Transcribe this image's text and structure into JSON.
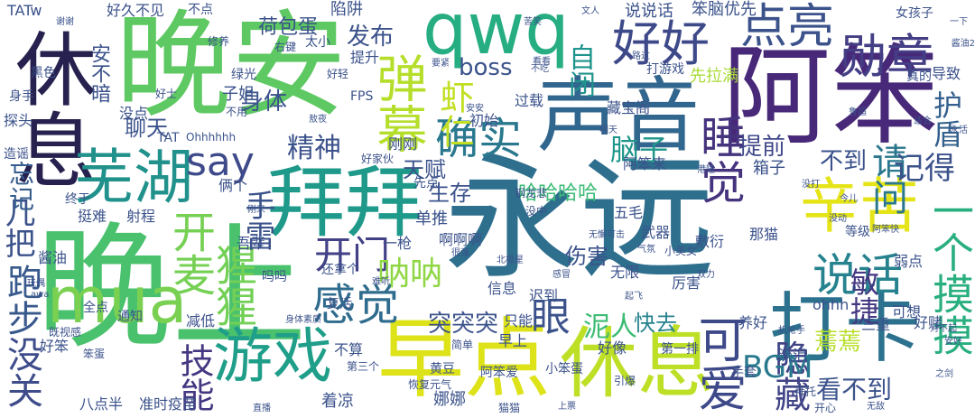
{
  "words": [
    {
      "text": "晚安",
      "color": "#5ec962",
      "vertical": false
    },
    {
      "text": "晚上",
      "color": "#4ac16d",
      "vertical": false
    },
    {
      "text": "永远",
      "color": "#2e6f8e",
      "vertical": false
    },
    {
      "text": "阿笨",
      "color": "#482878",
      "vertical": false
    },
    {
      "text": "休息",
      "color": "#26214e",
      "vertical": true
    },
    {
      "text": "qwq",
      "color": "#26ad81",
      "vertical": false
    },
    {
      "text": "声音",
      "color": "#31668e",
      "vertical": false
    },
    {
      "text": "拜拜",
      "color": "#1f998a",
      "vertical": false
    },
    {
      "text": "早点",
      "color": "#dde318",
      "vertical": false
    },
    {
      "text": "休息",
      "color": "#bddf26",
      "vertical": false
    },
    {
      "text": "打卡",
      "color": "#2c728e",
      "vertical": false
    },
    {
      "text": "芜湖",
      "color": "#21918c",
      "vertical": false
    },
    {
      "text": "mua",
      "color": "#7ad151",
      "vertical": false
    },
    {
      "text": "游戏",
      "color": "#1f9e89",
      "vertical": false
    },
    {
      "text": "弹幕",
      "color": "#b5de2b",
      "vertical": true
    },
    {
      "text": "好好",
      "color": "#3e4989",
      "vertical": false
    },
    {
      "text": "点亮",
      "color": "#3b528b",
      "vertical": false
    },
    {
      "text": "勋章",
      "color": "#433e85",
      "vertical": false
    },
    {
      "text": "辛苦",
      "color": "#e5e419",
      "vertical": false
    },
    {
      "text": "say",
      "color": "#3e4a89",
      "vertical": false
    },
    {
      "text": "精神",
      "color": "#3b528b",
      "vertical": false
    },
    {
      "text": "确实",
      "color": "#2a788e",
      "vertical": false
    },
    {
      "text": "虾仁",
      "color": "#c2df23",
      "vertical": true
    },
    {
      "text": "睡觉",
      "color": "#46337e",
      "vertical": true
    },
    {
      "text": "开麦",
      "color": "#75d054",
      "vertical": true
    },
    {
      "text": "猩猩",
      "color": "#73d056",
      "vertical": true
    },
    {
      "text": "手雷",
      "color": "#3b528b",
      "vertical": true
    },
    {
      "text": "说话",
      "color": "#26828e",
      "vertical": false
    },
    {
      "text": "一个摸摸",
      "color": "#29af7f",
      "vertical": true
    },
    {
      "text": "可爱",
      "color": "#3e4989",
      "vertical": true
    },
    {
      "text": "隐藏",
      "color": "#414487",
      "vertical": true
    },
    {
      "text": "感觉",
      "color": "#2f6c8e",
      "vertical": false
    },
    {
      "text": "BGM",
      "color": "#29798e",
      "vertical": false
    },
    {
      "text": "技能",
      "color": "#453781",
      "vertical": true
    },
    {
      "text": "没关",
      "color": "#3e4c8a",
      "vertical": true
    },
    {
      "text": "跑步",
      "color": "#38598c",
      "vertical": true
    },
    {
      "text": "几把",
      "color": "#3b528b",
      "vertical": true
    },
    {
      "text": "忘记",
      "color": "#365d8d",
      "vertical": true
    },
    {
      "text": "开门",
      "color": "#424086",
      "vertical": false
    },
    {
      "text": "呐呐",
      "color": "#8fd744",
      "vertical": false
    },
    {
      "text": "眼",
      "color": "#3b528b",
      "vertical": false
    },
    {
      "text": "敏捷",
      "color": "#453882",
      "vertical": true
    },
    {
      "text": "请问",
      "color": "#2a778e",
      "vertical": true
    },
    {
      "text": "记得",
      "color": "#3b528b",
      "vertical": false
    },
    {
      "text": "护盾",
      "color": "#34608d",
      "vertical": true
    },
    {
      "text": "boss",
      "color": "#3a538b",
      "vertical": false
    },
    {
      "text": "发布",
      "color": "#3b528b",
      "vertical": false
    },
    {
      "text": "自闭",
      "color": "#1f948c",
      "vertical": true
    },
    {
      "text": "脑子",
      "color": "#1f968b",
      "vertical": false
    },
    {
      "text": "天赋",
      "color": "#3b528b",
      "vertical": false
    },
    {
      "text": "生存",
      "color": "#3b528b",
      "vertical": false
    },
    {
      "text": "提前",
      "color": "#3f4889",
      "vertical": false
    },
    {
      "text": "不到",
      "color": "#3b528b",
      "vertical": false
    },
    {
      "text": "看不到",
      "color": "#3b528b",
      "vertical": false
    },
    {
      "text": "蔫蔫",
      "color": "#b8de29",
      "vertical": false
    },
    {
      "text": "泥人",
      "color": "#3dbc74",
      "vertical": false
    },
    {
      "text": "快去",
      "color": "#26828e",
      "vertical": false
    },
    {
      "text": "哈哈哈哈",
      "color": "#3bbb75",
      "vertical": false
    },
    {
      "text": "突突突",
      "color": "#3b528b",
      "vertical": false
    },
    {
      "text": "伤害",
      "color": "#3b528b",
      "vertical": false
    },
    {
      "text": "聊天",
      "color": "#3b528b",
      "vertical": false
    },
    {
      "text": "荷包蛋",
      "color": "#3b528b",
      "vertical": false
    },
    {
      "text": "身体",
      "color": "#3b528b",
      "vertical": false
    },
    {
      "text": "安不暗",
      "color": "#3b528b",
      "vertical": true
    },
    {
      "text": "好久不见",
      "color": "#3b528b",
      "vertical": false
    },
    {
      "text": "不点",
      "color": "#3b528b",
      "vertical": false
    },
    {
      "text": "陷阱",
      "color": "#3b528b",
      "vertical": false
    },
    {
      "text": "说说话",
      "color": "#3b528b",
      "vertical": false
    },
    {
      "text": "笨脑优先",
      "color": "#3b528b",
      "vertical": false
    },
    {
      "text": "提升",
      "color": "#3b528b",
      "vertical": false
    },
    {
      "text": "太小",
      "color": "#3b528b",
      "vertical": false
    },
    {
      "text": "先拉满",
      "color": "#a8db34",
      "vertical": false
    },
    {
      "text": "过载",
      "color": "#3b528b",
      "vertical": false
    },
    {
      "text": "藏宝阁",
      "color": "#3b528b",
      "vertical": false
    },
    {
      "text": "初始",
      "color": "#3b528b",
      "vertical": false
    },
    {
      "text": "箱子",
      "color": "#3b528b",
      "vertical": false
    },
    {
      "text": "阿笨来",
      "color": "#3b528b",
      "vertical": false
    },
    {
      "text": "刚刚",
      "color": "#3b528b",
      "vertical": false
    },
    {
      "text": "先点",
      "color": "#3b528b",
      "vertical": false
    },
    {
      "text": "五毛",
      "color": "#3b528b",
      "vertical": false
    },
    {
      "text": "单推",
      "color": "#3b528b",
      "vertical": false
    },
    {
      "text": "啊啊啊",
      "color": "#3b528b",
      "vertical": false
    },
    {
      "text": "吾辈",
      "color": "#3b528b",
      "vertical": false
    },
    {
      "text": "射程",
      "color": "#3b528b",
      "vertical": false
    },
    {
      "text": "挺难",
      "color": "#3b528b",
      "vertical": false
    },
    {
      "text": "终于",
      "color": "#3b528b",
      "vertical": false
    },
    {
      "text": "还拿个",
      "color": "#3b528b",
      "vertical": false
    },
    {
      "text": "信息",
      "color": "#3b528b",
      "vertical": false
    },
    {
      "text": "迟到",
      "color": "#3b528b",
      "vertical": false
    },
    {
      "text": "无限",
      "color": "#3b528b",
      "vertical": false
    },
    {
      "text": "武器",
      "color": "#3b528b",
      "vertical": false
    },
    {
      "text": "那猫",
      "color": "#3b528b",
      "vertical": false
    },
    {
      "text": "敷衍",
      "color": "#3b528b",
      "vertical": false
    },
    {
      "text": "厉害",
      "color": "#3b528b",
      "vertical": false
    },
    {
      "text": "弱点",
      "color": "#3b528b",
      "vertical": false
    },
    {
      "text": "可想",
      "color": "#3b528b",
      "vertical": false
    },
    {
      "text": "ohhh",
      "color": "#3b528b",
      "vertical": false
    },
    {
      "text": "好赌",
      "color": "#3b528b",
      "vertical": false
    },
    {
      "text": "三重",
      "color": "#3b528b",
      "vertical": false
    },
    {
      "text": "只能",
      "color": "#3b528b",
      "vertical": false
    },
    {
      "text": "复活",
      "color": "#3b528b",
      "vertical": false
    },
    {
      "text": "减低",
      "color": "#3b528b",
      "vertical": false
    },
    {
      "text": "通知",
      "color": "#3b528b",
      "vertical": false
    },
    {
      "text": "全点",
      "color": "#3b528b",
      "vertical": false
    },
    {
      "text": "好笨",
      "color": "#3b528b",
      "vertical": false
    },
    {
      "text": "八点半",
      "color": "#3b528b",
      "vertical": false
    },
    {
      "text": "准时疫苗",
      "color": "#3b528b",
      "vertical": false
    },
    {
      "text": "着凉",
      "color": "#3b528b",
      "vertical": false
    },
    {
      "text": "娜娜",
      "color": "#3b528b",
      "vertical": false
    },
    {
      "text": "早上",
      "color": "#3b528b",
      "vertical": false
    },
    {
      "text": "好像",
      "color": "#3b528b",
      "vertical": false
    },
    {
      "text": "流泪",
      "color": "#3b528b",
      "vertical": false
    },
    {
      "text": "手套",
      "color": "#3b528b",
      "vertical": false
    },
    {
      "text": "拜托",
      "color": "#3b528b",
      "vertical": false
    },
    {
      "text": "开心",
      "color": "#3b528b",
      "vertical": false
    },
    {
      "text": "阿笨爱",
      "color": "#3b528b",
      "vertical": false
    },
    {
      "text": "猫猫",
      "color": "#3b528b",
      "vertical": false
    },
    {
      "text": "引爆",
      "color": "#3b528b",
      "vertical": false
    },
    {
      "text": "FPS",
      "color": "#3b528b",
      "vertical": false
    },
    {
      "text": "TAT",
      "color": "#3b528b",
      "vertical": false
    },
    {
      "text": "TATw",
      "color": "#3b528b",
      "vertical": false
    },
    {
      "text": "Ohhhhhh",
      "color": "#3b528b",
      "vertical": false
    },
    {
      "text": "没点",
      "color": "#3b528b",
      "vertical": false
    },
    {
      "text": "探头",
      "color": "#3b528b",
      "vertical": false
    },
    {
      "text": "造谣",
      "color": "#3b528b",
      "vertical": false
    },
    {
      "text": "子姐",
      "color": "#3b528b",
      "vertical": false
    },
    {
      "text": "俩个",
      "color": "#3b528b",
      "vertical": false
    },
    {
      "text": "一枪",
      "color": "#3b528b",
      "vertical": false
    },
    {
      "text": "养好",
      "color": "#3b528b",
      "vertical": false
    },
    {
      "text": "等级",
      "color": "#3b528b",
      "vertical": false
    },
    {
      "text": "导致",
      "color": "#3b528b",
      "vertical": false
    },
    {
      "text": "真的",
      "color": "#3b528b",
      "vertical": false
    },
    {
      "text": "女孩子",
      "color": "#3b528b",
      "vertical": false
    },
    {
      "text": "打游戏",
      "color": "#3b528b",
      "vertical": false
    },
    {
      "text": "绿光",
      "color": "#3b528b",
      "vertical": false
    },
    {
      "text": "修养",
      "color": "#3b528b",
      "vertical": false
    },
    {
      "text": "右键",
      "color": "#3b528b",
      "vertical": false
    },
    {
      "text": "不用",
      "color": "#3b528b",
      "vertical": false
    },
    {
      "text": "敖夜",
      "color": "#3b528b",
      "vertical": false
    },
    {
      "text": "安安",
      "color": "#3b528b",
      "vertical": false
    },
    {
      "text": "要紧",
      "color": "#3b528b",
      "vertical": false
    },
    {
      "text": "好轻",
      "color": "#3b528b",
      "vertical": false
    },
    {
      "text": "好士",
      "color": "#3b528b",
      "vertical": false
    },
    {
      "text": "黑色",
      "color": "#3b528b",
      "vertical": false
    },
    {
      "text": "身手",
      "color": "#3b528b",
      "vertical": false
    },
    {
      "text": "谢谢",
      "color": "#3b528b",
      "vertical": false
    },
    {
      "text": "看看",
      "color": "#3b528b",
      "vertical": false
    },
    {
      "text": "明天",
      "color": "#3b528b",
      "vertical": false
    },
    {
      "text": "适合",
      "color": "#3b528b",
      "vertical": false
    },
    {
      "text": "永活",
      "color": "#3b528b",
      "vertical": false
    },
    {
      "text": "苦笑",
      "color": "#3b528b",
      "vertical": false
    },
    {
      "text": "港隆",
      "color": "#3b528b",
      "vertical": false
    },
    {
      "text": "今儿",
      "color": "#3b528b",
      "vertical": false
    },
    {
      "text": "没打",
      "color": "#3b528b",
      "vertical": false
    },
    {
      "text": "没动",
      "color": "#3b528b",
      "vertical": false
    },
    {
      "text": "阿笨快",
      "color": "#3b528b",
      "vertical": false
    },
    {
      "text": "机枪手",
      "color": "#3b528b",
      "vertical": false
    },
    {
      "text": "对不起",
      "color": "#3b528b",
      "vertical": false
    },
    {
      "text": "安好",
      "color": "#3b528b",
      "vertical": false
    },
    {
      "text": "之剑",
      "color": "#3b528b",
      "vertical": false
    },
    {
      "text": "无敌",
      "color": "#3b528b",
      "vertical": false
    },
    {
      "text": "上票",
      "color": "#3b528b",
      "vertical": false
    },
    {
      "text": "直播",
      "color": "#3b528b",
      "vertical": false
    },
    {
      "text": "第三个",
      "color": "#3b528b",
      "vertical": false
    },
    {
      "text": "第一排",
      "color": "#3b528b",
      "vertical": false
    },
    {
      "text": "简单",
      "color": "#3b528b",
      "vertical": false
    },
    {
      "text": "黄豆",
      "color": "#3b528b",
      "vertical": false
    },
    {
      "text": "小笨蛋",
      "color": "#3b528b",
      "vertical": false
    },
    {
      "text": "恢复元气",
      "color": "#3b528b",
      "vertical": false
    },
    {
      "text": "不算",
      "color": "#3b528b",
      "vertical": false
    },
    {
      "text": "酱油",
      "color": "#3b528b",
      "vertical": false
    },
    {
      "text": "笨蛋",
      "color": "#3b528b",
      "vertical": false
    },
    {
      "text": "既视感",
      "color": "#3b528b",
      "vertical": false
    },
    {
      "text": "玩偶",
      "color": "#3b528b",
      "vertical": false
    },
    {
      "text": "awa",
      "color": "#3b528b",
      "vertical": false
    },
    {
      "text": "刚来",
      "color": "#3b528b",
      "vertical": false
    },
    {
      "text": "好家伙",
      "color": "#3b528b",
      "vertical": false
    },
    {
      "text": "钢龙悲",
      "color": "#3b528b",
      "vertical": false
    },
    {
      "text": "没中",
      "color": "#3b528b",
      "vertical": false
    },
    {
      "text": "无懈可击",
      "color": "#3b528b",
      "vertical": false
    },
    {
      "text": "很强",
      "color": "#3b528b",
      "vertical": false
    },
    {
      "text": "北极星",
      "color": "#3b528b",
      "vertical": false
    },
    {
      "text": "气氛",
      "color": "#3b528b",
      "vertical": false
    },
    {
      "text": "小美女",
      "color": "#3b528b",
      "vertical": false
    },
    {
      "text": "身体素质",
      "color": "#3b528b",
      "vertical": false
    },
    {
      "text": "感冒",
      "color": "#3b528b",
      "vertical": false
    },
    {
      "text": "双力",
      "color": "#3b528b",
      "vertical": false
    },
    {
      "text": "起飞",
      "color": "#3b528b",
      "vertical": false
    },
    {
      "text": "鲁超",
      "color": "#3b528b",
      "vertical": false
    },
    {
      "text": "文人",
      "color": "#3b528b",
      "vertical": false
    },
    {
      "text": "路过",
      "color": "#3b528b",
      "vertical": false
    },
    {
      "text": "不吃",
      "color": "#3b528b",
      "vertical": false
    },
    {
      "text": "吗吗",
      "color": "#3b528b",
      "vertical": false
    },
    {
      "text": "难听",
      "color": "#3b528b",
      "vertical": false
    },
    {
      "text": "一下",
      "color": "#3b528b",
      "vertical": false
    },
    {
      "text": "酱油2",
      "color": "#3b528b",
      "vertical": false
    }
  ]
}
